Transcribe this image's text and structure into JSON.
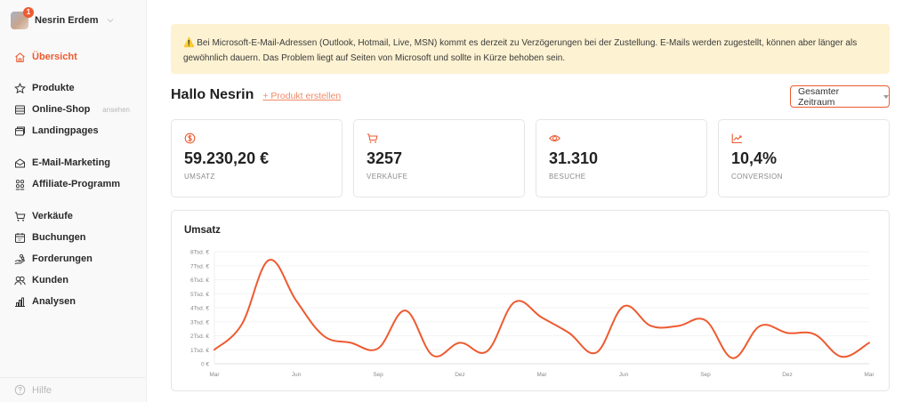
{
  "sidebar": {
    "profile": {
      "name": "Nesrin Erdem",
      "badge": "1"
    },
    "items": [
      {
        "label": "Übersicht",
        "icon": "home-icon",
        "active": true
      },
      {
        "label": "Produkte",
        "icon": "star-icon"
      },
      {
        "label": "Online-Shop",
        "icon": "store-icon",
        "extra": "ansehen"
      },
      {
        "label": "Landingpages",
        "icon": "pages-icon"
      },
      {
        "label": "E-Mail-Marketing",
        "icon": "mail-open-icon"
      },
      {
        "label": "Affiliate-Programm",
        "icon": "affiliate-icon"
      },
      {
        "label": "Verkäufe",
        "icon": "cart-icon"
      },
      {
        "label": "Buchungen",
        "icon": "calendar-icon"
      },
      {
        "label": "Forderungen",
        "icon": "hand-coins-icon"
      },
      {
        "label": "Kunden",
        "icon": "users-icon"
      },
      {
        "label": "Analysen",
        "icon": "bar-chart-icon"
      }
    ],
    "help": {
      "label": "Hilfe",
      "icon": "help-circle-icon"
    }
  },
  "alert": {
    "icon": "warning-icon",
    "text": "⚠️ Bei Microsoft-E-Mail-Adressen (Outlook, Hotmail, Live, MSN) kommt es derzeit zu Verzögerungen bei der Zustellung. E-Mails werden zugestellt, können aber länger als gewöhnlich dauern. Das Problem liegt auf Seiten von Microsoft und sollte in Kürze behoben sein."
  },
  "header": {
    "greeting": "Hallo Nesrin",
    "create_link": "+ Produkt erstellen",
    "period_select": "Gesamter Zeitraum"
  },
  "stats": [
    {
      "icon": "dollar-circle-icon",
      "value": "59.230,20 €",
      "label": "UMSATZ"
    },
    {
      "icon": "cart-icon",
      "value": "3257",
      "label": "VERKÄUFE"
    },
    {
      "icon": "eye-icon",
      "value": "31.310",
      "label": "BESUCHE"
    },
    {
      "icon": "trend-up-icon",
      "value": "10,4%",
      "label": "CONVERSION"
    }
  ],
  "colors": {
    "accent": "#ee5a30",
    "alert_bg": "#fdf2d2",
    "sidebar_bg": "#f9f9f9"
  },
  "chart_data": {
    "type": "line",
    "title": "Umsatz",
    "xlabel": "",
    "ylabel": "",
    "ylim": [
      0,
      8000
    ],
    "y_ticks": [
      "0 €",
      "1Tsd. €",
      "2Tsd. €",
      "3Tsd. €",
      "4Tsd. €",
      "5Tsd. €",
      "6Tsd. €",
      "7Tsd. €",
      "8Tsd. €"
    ],
    "x_tick_labels": [
      "Mar",
      "Jun",
      "Sep",
      "Dez",
      "Mar",
      "Jun",
      "Sep",
      "Dez",
      "Mar"
    ],
    "grid": true,
    "legend": null,
    "series": [
      {
        "name": "Umsatz",
        "color": "#ee5a30",
        "values": [
          1000,
          2800,
          7400,
          4500,
          2000,
          1500,
          1100,
          3800,
          600,
          1500,
          900,
          4400,
          3300,
          2200,
          800,
          4100,
          2700,
          2700,
          3100,
          400,
          2700,
          2200,
          2100,
          500,
          1500
        ]
      }
    ]
  }
}
